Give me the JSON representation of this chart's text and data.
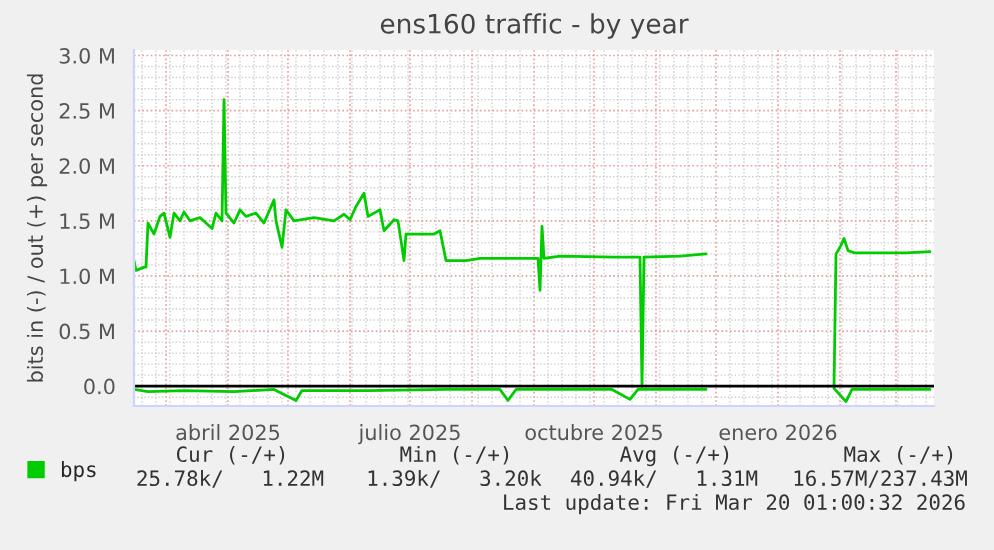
{
  "chart_data": {
    "type": "line",
    "title": "ens160 traffic - by year",
    "ylabel": "bits in (-) / out (+) per second",
    "series": [
      {
        "name": "bps",
        "color": "#00cc00",
        "x": [
          "2025-02-13",
          "2025-02-14",
          "2025-02-18",
          "2025-02-19",
          "2025-02-20",
          "2025-02-23",
          "2025-02-26",
          "2025-02-28",
          "2025-03-03",
          "2025-03-05",
          "2025-03-08",
          "2025-03-10",
          "2025-03-13",
          "2025-03-18",
          "2025-03-24",
          "2025-03-26",
          "2025-03-29",
          "2025-03-30",
          "2025-03-31",
          "2025-04-04",
          "2025-04-07",
          "2025-04-10",
          "2025-04-15",
          "2025-04-19",
          "2025-04-24",
          "2025-04-25",
          "2025-04-28",
          "2025-04-30",
          "2025-05-04",
          "2025-05-14",
          "2025-05-24",
          "2025-05-29",
          "2025-06-01",
          "2025-06-04",
          "2025-06-08",
          "2025-06-10",
          "2025-06-13",
          "2025-06-16",
          "2025-06-18",
          "2025-06-23",
          "2025-06-25",
          "2025-06-28",
          "2025-06-29",
          "2025-07-03",
          "2025-07-13",
          "2025-07-16",
          "2025-07-19",
          "2025-07-29",
          "2025-08-05",
          "2025-09-03",
          "2025-09-04",
          "2025-09-05",
          "2025-09-06",
          "2025-09-14",
          "2025-10-11",
          "2025-10-24",
          "2025-10-25",
          "2025-10-26",
          "2025-11-13",
          "2025-11-26",
          "2025-12-15",
          "2026-01-29",
          "2026-01-30",
          "2026-02-01",
          "2026-02-03",
          "2026-02-05",
          "2026-02-08",
          "2026-02-21",
          "2026-03-06",
          "2026-03-18"
        ],
        "values": [
          1.14,
          1.05,
          1.08,
          1.08,
          1.48,
          1.38,
          1.54,
          1.57,
          1.35,
          1.57,
          1.5,
          1.58,
          1.5,
          1.53,
          1.43,
          1.57,
          1.5,
          2.6,
          1.57,
          1.48,
          1.6,
          1.54,
          1.57,
          1.48,
          1.69,
          1.5,
          1.26,
          1.6,
          1.5,
          1.53,
          1.5,
          1.56,
          1.51,
          1.63,
          1.75,
          1.54,
          1.57,
          1.6,
          1.41,
          1.51,
          1.5,
          1.14,
          1.38,
          1.38,
          1.38,
          1.41,
          1.14,
          1.14,
          1.16,
          1.16,
          0.87,
          1.45,
          1.16,
          1.18,
          1.17,
          1.17,
          0.0,
          1.17,
          1.18,
          1.2,
          null,
          0.0,
          1.2,
          1.26,
          1.34,
          1.23,
          1.21,
          1.21,
          1.21,
          1.22
        ]
      },
      {
        "color": "#00cc00",
        "x": [
          "2025-02-13",
          "2025-02-20",
          "2025-03-10",
          "2025-04-04",
          "2025-04-24",
          "2025-05-05",
          "2025-05-08",
          "2025-06-10",
          "2025-07-19",
          "2025-08-15",
          "2025-08-19",
          "2025-08-23",
          "2025-10-10",
          "2025-10-19",
          "2025-10-23",
          "2025-11-26",
          "2025-12-15",
          "2026-01-29",
          "2026-02-04",
          "2026-02-07",
          "2026-03-18"
        ],
        "values": [
          -0.03,
          -0.05,
          -0.04,
          -0.05,
          -0.03,
          -0.13,
          -0.04,
          -0.04,
          -0.03,
          -0.03,
          -0.13,
          -0.03,
          -0.03,
          -0.12,
          -0.03,
          -0.03,
          null,
          -0.02,
          -0.14,
          -0.03,
          -0.03
        ]
      }
    ],
    "ref_lines": [
      {
        "axis": "y",
        "value": 0,
        "color": "#000000"
      }
    ],
    "xlim": [
      "2025-02-13",
      "2026-03-20"
    ],
    "xticks": [
      {
        "value": "2025-03-01",
        "label": null
      },
      {
        "value": "2025-04-01",
        "label": "abril 2025"
      },
      {
        "value": "2025-05-01",
        "label": null
      },
      {
        "value": "2025-06-01",
        "label": null
      },
      {
        "value": "2025-07-01",
        "label": "julio 2025"
      },
      {
        "value": "2025-08-01",
        "label": null
      },
      {
        "value": "2025-09-01",
        "label": null
      },
      {
        "value": "2025-10-01",
        "label": "octubre 2025"
      },
      {
        "value": "2025-11-01",
        "label": null
      },
      {
        "value": "2025-12-01",
        "label": null
      },
      {
        "value": "2026-01-01",
        "label": "enero 2026"
      },
      {
        "value": "2026-02-01",
        "label": null
      },
      {
        "value": "2026-03-01",
        "label": null
      }
    ],
    "ylim": [
      -0.18,
      3.05
    ],
    "yticks": [
      {
        "value": 0,
        "label": "0.0"
      },
      {
        "value": 0.5,
        "label": "0.5 M"
      },
      {
        "value": 1.0,
        "label": "1.0 M"
      },
      {
        "value": 1.5,
        "label": "1.5 M"
      },
      {
        "value": 2.0,
        "label": "2.0 M"
      },
      {
        "value": 2.5,
        "label": "2.5 M"
      },
      {
        "value": 3.0,
        "label": "3.0 M"
      }
    ],
    "grid": true,
    "legend": "bottom left",
    "annotations": [
      "Cur (-/+)",
      "Min (-/+)",
      "Avg (-/+)",
      "Max (-/+)",
      "25.78k/   1.22M",
      "1.39k/   3.20k",
      "40.94k/   1.31M",
      "16.57M/237.43M",
      "Last update: Fri Mar 20 01:00:32 2026"
    ]
  }
}
